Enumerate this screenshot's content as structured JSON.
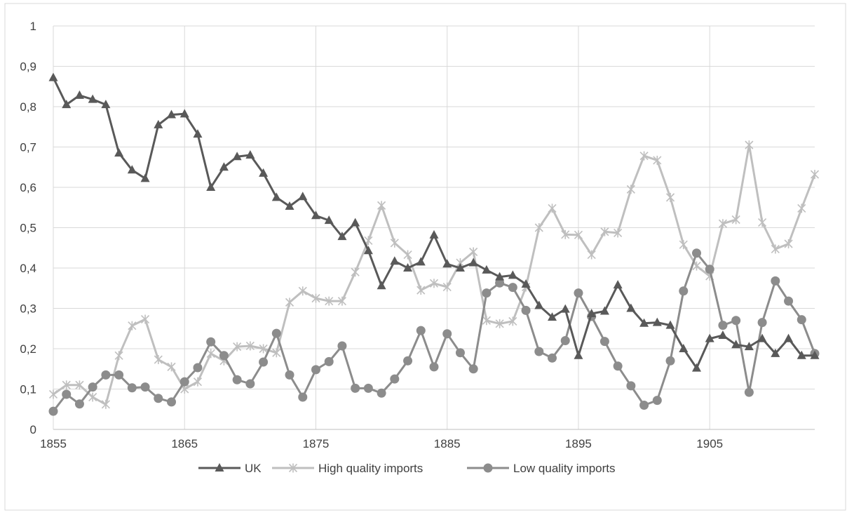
{
  "chart_data": {
    "type": "line",
    "title": "",
    "xlabel": "",
    "ylabel": "",
    "xlim": [
      1855,
      1913
    ],
    "ylim": [
      0,
      1
    ],
    "x_ticks": [
      "1855",
      "1865",
      "1875",
      "1885",
      "1895",
      "1905"
    ],
    "y_ticks": [
      "0",
      "0,1",
      "0,2",
      "0,3",
      "0,4",
      "0,5",
      "0,6",
      "0,7",
      "0,8",
      "0,9",
      "1"
    ],
    "grid": "vertical and horizontal",
    "legend_position": "bottom",
    "x": [
      1855,
      1856,
      1857,
      1858,
      1859,
      1860,
      1861,
      1862,
      1863,
      1864,
      1865,
      1866,
      1867,
      1868,
      1869,
      1870,
      1871,
      1872,
      1873,
      1874,
      1875,
      1876,
      1877,
      1878,
      1879,
      1880,
      1881,
      1882,
      1883,
      1884,
      1885,
      1886,
      1887,
      1888,
      1889,
      1890,
      1891,
      1892,
      1893,
      1894,
      1895,
      1896,
      1897,
      1898,
      1899,
      1900,
      1901,
      1902,
      1903,
      1904,
      1905,
      1906,
      1907,
      1908,
      1909,
      1910,
      1911,
      1912,
      1913
    ],
    "series": [
      {
        "name": "UK",
        "color": "#595959",
        "marker": "triangle",
        "values": [
          0.872,
          0.805,
          0.828,
          0.818,
          0.805,
          0.685,
          0.643,
          0.622,
          0.755,
          0.78,
          0.782,
          0.732,
          0.6,
          0.65,
          0.676,
          0.68,
          0.635,
          0.575,
          0.553,
          0.577,
          0.53,
          0.518,
          0.478,
          0.512,
          0.443,
          0.356,
          0.417,
          0.4,
          0.415,
          0.482,
          0.41,
          0.4,
          0.413,
          0.395,
          0.378,
          0.382,
          0.36,
          0.307,
          0.278,
          0.298,
          0.183,
          0.287,
          0.293,
          0.358,
          0.3,
          0.263,
          0.265,
          0.258,
          0.2,
          0.152,
          0.225,
          0.233,
          0.21,
          0.205,
          0.225,
          0.188,
          0.225,
          0.183,
          0.183
        ]
      },
      {
        "name": "High quality imports",
        "color": "#bfbfbf",
        "marker": "star",
        "values": [
          0.087,
          0.11,
          0.11,
          0.08,
          0.062,
          0.183,
          0.257,
          0.273,
          0.173,
          0.155,
          0.1,
          0.118,
          0.188,
          0.17,
          0.205,
          0.207,
          0.2,
          0.19,
          0.315,
          0.343,
          0.325,
          0.318,
          0.318,
          0.39,
          0.468,
          0.555,
          0.462,
          0.433,
          0.345,
          0.362,
          0.353,
          0.413,
          0.44,
          0.27,
          0.262,
          0.268,
          0.353,
          0.5,
          0.548,
          0.483,
          0.482,
          0.433,
          0.49,
          0.487,
          0.595,
          0.678,
          0.667,
          0.575,
          0.458,
          0.405,
          0.38,
          0.51,
          0.52,
          0.705,
          0.513,
          0.447,
          0.46,
          0.548,
          0.632
        ]
      },
      {
        "name": "Low quality imports",
        "color": "#8c8c8c",
        "marker": "circle",
        "values": [
          0.045,
          0.087,
          0.063,
          0.105,
          0.135,
          0.135,
          0.103,
          0.105,
          0.077,
          0.068,
          0.118,
          0.153,
          0.217,
          0.183,
          0.123,
          0.113,
          0.167,
          0.238,
          0.135,
          0.08,
          0.148,
          0.168,
          0.207,
          0.102,
          0.102,
          0.09,
          0.125,
          0.17,
          0.245,
          0.155,
          0.237,
          0.19,
          0.15,
          0.338,
          0.363,
          0.352,
          0.295,
          0.193,
          0.177,
          0.22,
          0.338,
          0.28,
          0.218,
          0.157,
          0.108,
          0.06,
          0.072,
          0.17,
          0.343,
          0.437,
          0.397,
          0.258,
          0.27,
          0.092,
          0.265,
          0.368,
          0.318,
          0.272,
          0.188
        ]
      }
    ]
  }
}
